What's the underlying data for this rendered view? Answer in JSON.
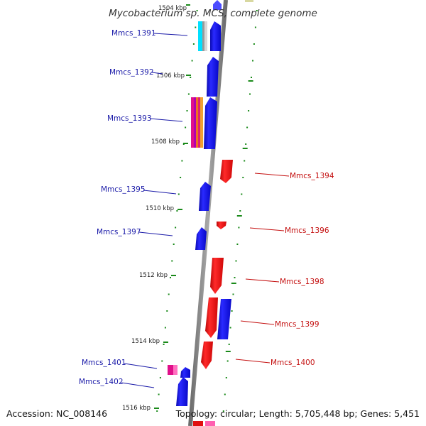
{
  "header": {
    "title": "Mycobacterium sp. MCS, complete genome"
  },
  "footer": {
    "accession": "Accession: NC_008146",
    "summary": "Topology: circular; Length: 5,705,448 bp; Genes: 5,451"
  },
  "colors": {
    "forward_gene": "#1010e0",
    "reverse_gene": "#e01010",
    "backbone": "#8a8a8a",
    "tick": "#1a8a1a",
    "forward_label": "#1a1aa8",
    "reverse_label": "#c41010"
  },
  "ticks": [
    {
      "label": "1504 kbp"
    },
    {
      "label": "1506 kbp"
    },
    {
      "label": "1508 kbp"
    },
    {
      "label": "1510 kbp"
    },
    {
      "label": "1512 kbp"
    },
    {
      "label": "1514 kbp"
    },
    {
      "label": "1516 kbp"
    }
  ],
  "genes_forward": [
    {
      "name": "Mmcs_1391"
    },
    {
      "name": "Mmcs_1392"
    },
    {
      "name": "Mmcs_1393"
    },
    {
      "name": "Mmcs_1395"
    },
    {
      "name": "Mmcs_1397"
    },
    {
      "name": "Mmcs_1401"
    },
    {
      "name": "Mmcs_1402"
    }
  ],
  "genes_reverse": [
    {
      "name": "Mmcs_1394"
    },
    {
      "name": "Mmcs_1396"
    },
    {
      "name": "Mmcs_1398"
    },
    {
      "name": "Mmcs_1399"
    },
    {
      "name": "Mmcs_1400"
    }
  ]
}
